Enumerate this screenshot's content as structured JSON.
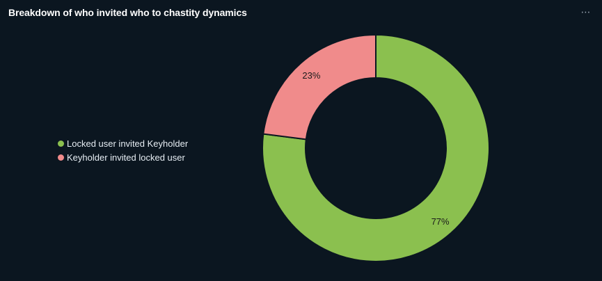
{
  "card": {
    "title": "Breakdown of who invited who to chastity dynamics",
    "menu_icon": "more-horizontal-icon",
    "menu_glyph": "⋯"
  },
  "chart_data": {
    "type": "pie",
    "donut": true,
    "title": "Breakdown of who invited who to chastity dynamics",
    "legend_position": "left",
    "series": [
      {
        "name": "Locked user invited Keyholder",
        "value": 77,
        "label": "77%",
        "color": "#8bc04f"
      },
      {
        "name": "Keyholder invited locked user",
        "value": 23,
        "label": "23%",
        "color": "#f08b8b"
      }
    ]
  }
}
